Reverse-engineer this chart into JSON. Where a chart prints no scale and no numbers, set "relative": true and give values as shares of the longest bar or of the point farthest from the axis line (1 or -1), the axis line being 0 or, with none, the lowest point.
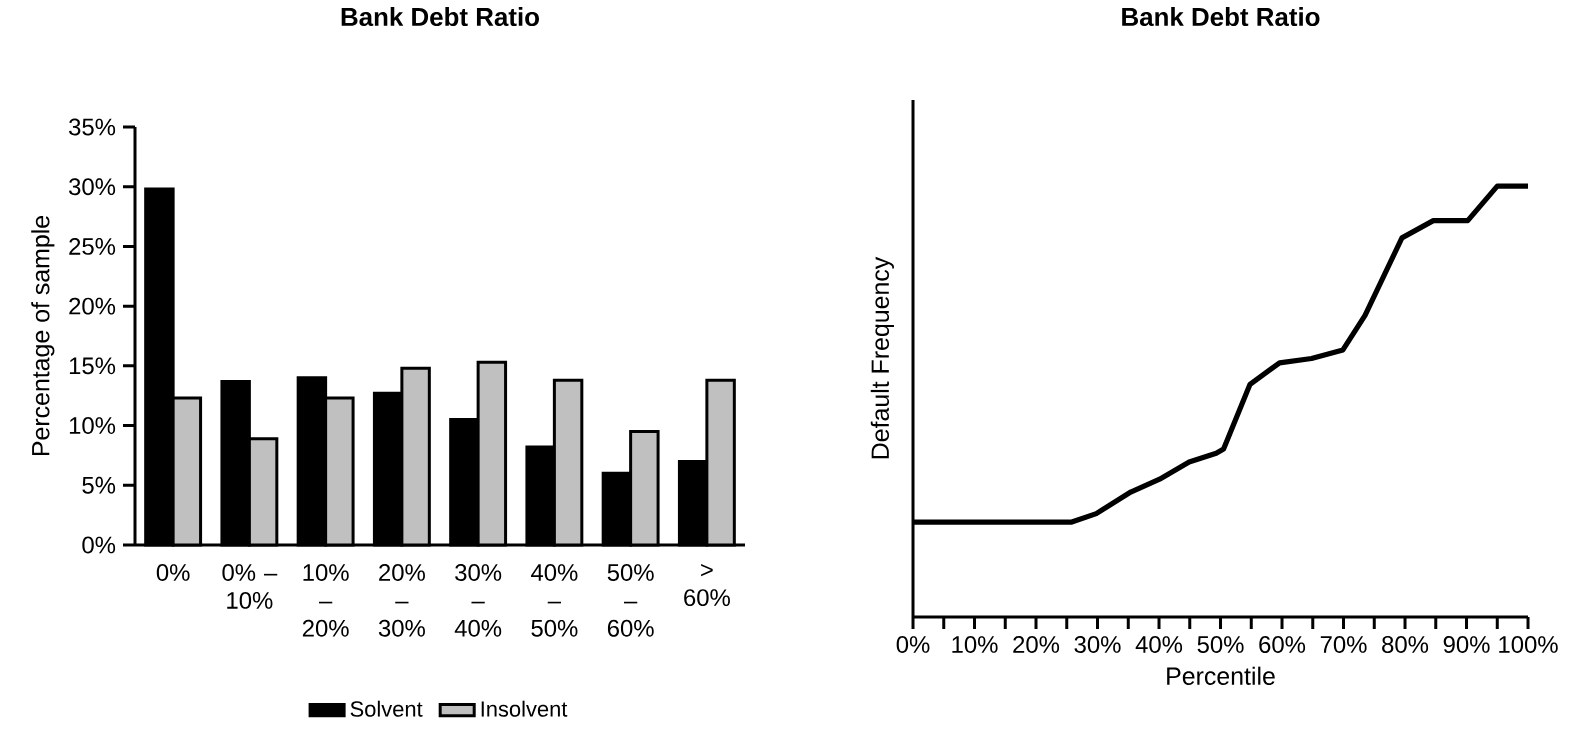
{
  "chart_data": [
    {
      "type": "bar",
      "title": "Bank Debt Ratio",
      "ylabel": "Percentage of sample",
      "categories": [
        "0%",
        "0% – 10%",
        "10% – 20%",
        "20% – 30%",
        "30% – 40%",
        "40% – 50%",
        "50% – 60%",
        "> 60%"
      ],
      "series": [
        {
          "name": "Solvent",
          "color": "#000000",
          "values": [
            29.8,
            13.7,
            14.0,
            12.7,
            10.5,
            8.2,
            6.0,
            7.0
          ]
        },
        {
          "name": "Insolvent",
          "color": "#c0c0c0",
          "values": [
            12.3,
            8.9,
            12.3,
            14.8,
            15.3,
            13.8,
            9.5,
            13.8
          ]
        }
      ],
      "ylim": [
        0,
        35
      ],
      "yticks": [
        {
          "value": 0,
          "label": "0%"
        },
        {
          "value": 5,
          "label": "5%"
        },
        {
          "value": 10,
          "label": "10%"
        },
        {
          "value": 15,
          "label": "15%"
        },
        {
          "value": 20,
          "label": "20%"
        },
        {
          "value": 25,
          "label": "25%"
        },
        {
          "value": 30,
          "label": "30%"
        },
        {
          "value": 35,
          "label": "35%"
        }
      ],
      "legend": "bottom"
    },
    {
      "type": "line",
      "title": "Bank Debt Ratio",
      "xlabel": "Percentile",
      "ylabel": "Default Frequency",
      "relative": true,
      "x": [
        0,
        25.7,
        29.8,
        35.4,
        40.1,
        44.9,
        49.3,
        50.5,
        54.8,
        59.6,
        64.8,
        69.9,
        73.5,
        79.5,
        84.6,
        90.2,
        95,
        100
      ],
      "values": [
        0.22,
        0.22,
        0.24,
        0.29,
        0.32,
        0.36,
        0.38,
        0.39,
        0.54,
        0.59,
        0.6,
        0.62,
        0.7,
        0.88,
        0.92,
        0.92,
        1.0,
        1.0
      ],
      "color": "#000000",
      "xlim": [
        0,
        100
      ],
      "xticks": [
        {
          "value": 0,
          "label": "0%"
        },
        {
          "value": 5,
          "label": null
        },
        {
          "value": 10,
          "label": "10%"
        },
        {
          "value": 15,
          "label": null
        },
        {
          "value": 20,
          "label": "20%"
        },
        {
          "value": 25,
          "label": null
        },
        {
          "value": 30,
          "label": "30%"
        },
        {
          "value": 35,
          "label": null
        },
        {
          "value": 40,
          "label": "40%"
        },
        {
          "value": 45,
          "label": null
        },
        {
          "value": 50,
          "label": "50%"
        },
        {
          "value": 55,
          "label": null
        },
        {
          "value": 60,
          "label": "60%"
        },
        {
          "value": 65,
          "label": null
        },
        {
          "value": 70,
          "label": "70%"
        },
        {
          "value": 75,
          "label": null
        },
        {
          "value": 80,
          "label": "80%"
        },
        {
          "value": 85,
          "label": null
        },
        {
          "value": 90,
          "label": "90%"
        },
        {
          "value": 95,
          "label": null
        },
        {
          "value": 100,
          "label": "100%"
        }
      ]
    }
  ]
}
